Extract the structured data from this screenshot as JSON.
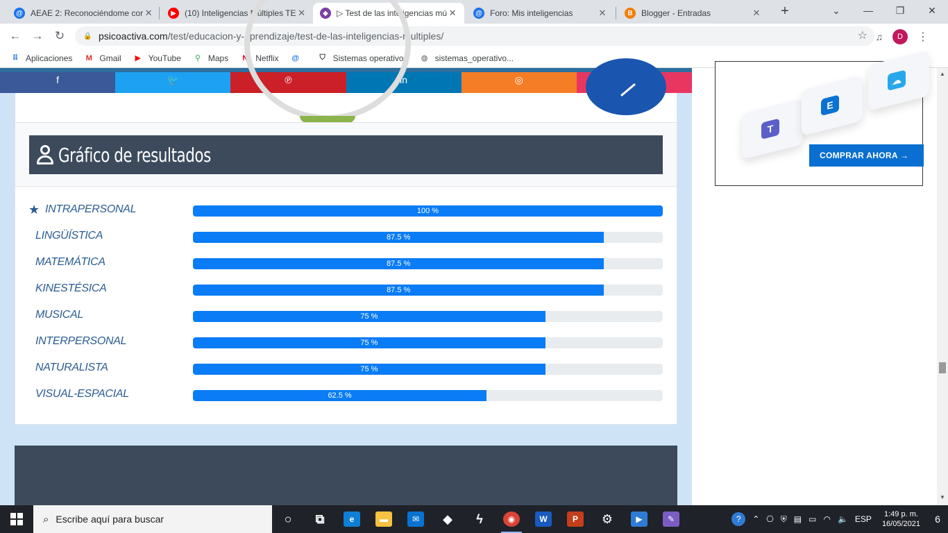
{
  "browser": {
    "tabs": [
      {
        "title": "AEAE 2: Reconociéndome cor",
        "icon": "at-icon",
        "color": "#1a73e8"
      },
      {
        "title": "(10) Inteligencias Múltiples TE",
        "icon": "youtube-icon",
        "color": "#ff0000"
      },
      {
        "title": "▷ Test de las inteligencias mú",
        "icon": "psicoactiva-icon",
        "color": "#7b3fa0"
      },
      {
        "title": "Foro: Mis inteligencias",
        "icon": "at-icon",
        "color": "#1a73e8"
      },
      {
        "title": "Blogger - Entradas",
        "icon": "blogger-icon",
        "color": "#f57d00"
      }
    ],
    "url_host": "psicoactiva.com",
    "url_path": "/test/educacion-y-aprendizaje/test-de-las-inteligencias-multiples/",
    "avatar_letter": "D",
    "bookmarks": [
      {
        "label": "Aplicaciones",
        "icon": "apps-grid-icon"
      },
      {
        "label": "Gmail",
        "icon": "gmail-icon"
      },
      {
        "label": "YouTube",
        "icon": "youtube-icon"
      },
      {
        "label": "Maps",
        "icon": "maps-icon"
      },
      {
        "label": "Netflix",
        "icon": "netflix-icon"
      },
      {
        "label": "",
        "icon": "at-icon"
      },
      {
        "label": "Sistemas operativos",
        "icon": "shield-icon"
      },
      {
        "label": "sistemas_operativo...",
        "icon": "globe-icon"
      }
    ]
  },
  "share_colors": [
    "#3b5998",
    "#1da1f2",
    "#cb2027",
    "#0077b5",
    "#f57d26",
    "#e93660"
  ],
  "results": {
    "title": "Gráfico de resultados",
    "items": [
      {
        "label": "INTRAPERSONAL",
        "value": 100,
        "text": "100 %",
        "starred": true
      },
      {
        "label": "LINGÜÍSTICA",
        "value": 87.5,
        "text": "87.5 %",
        "starred": false
      },
      {
        "label": "MATEMÁTICA",
        "value": 87.5,
        "text": "87.5 %",
        "starred": false
      },
      {
        "label": "KINESTÉSICA",
        "value": 87.5,
        "text": "87.5 %",
        "starred": false
      },
      {
        "label": "MUSICAL",
        "value": 75,
        "text": "75 %",
        "starred": false
      },
      {
        "label": "INTERPERSONAL",
        "value": 75,
        "text": "75 %",
        "starred": false
      },
      {
        "label": "NATURALISTA",
        "value": 75,
        "text": "75 %",
        "starred": false
      },
      {
        "label": "VISUAL-ESPACIAL",
        "value": 62.5,
        "text": "62.5 %",
        "starred": false
      }
    ]
  },
  "ad": {
    "button_label": "COMPRAR AHORA →"
  },
  "taskbar": {
    "search_placeholder": "Escribe aquí para buscar",
    "apps": [
      {
        "name": "cortana-icon",
        "glyph": "○",
        "color": "transparent"
      },
      {
        "name": "task-view-icon",
        "glyph": "⧉",
        "color": "transparent"
      },
      {
        "name": "edge-icon",
        "glyph": "e",
        "color": "#0f7fd4"
      },
      {
        "name": "file-explorer-icon",
        "glyph": "▬",
        "color": "#f6c242"
      },
      {
        "name": "mail-icon",
        "glyph": "✉",
        "color": "#0a72d1"
      },
      {
        "name": "dropbox-icon",
        "glyph": "◆",
        "color": "transparent"
      },
      {
        "name": "app-bolt-icon",
        "glyph": "ϟ",
        "color": "transparent"
      },
      {
        "name": "chrome-icon",
        "glyph": "◉",
        "color": "#db4437"
      },
      {
        "name": "word-icon",
        "glyph": "W",
        "color": "#185abd"
      },
      {
        "name": "powerpoint-icon",
        "glyph": "P",
        "color": "#c43e1c"
      },
      {
        "name": "settings-icon",
        "glyph": "⚙",
        "color": "transparent"
      },
      {
        "name": "video-editor-icon",
        "glyph": "▶",
        "color": "#2f7cd6"
      },
      {
        "name": "paint-icon",
        "glyph": "✎",
        "color": "#7c5cc2"
      }
    ],
    "lang": "ESP",
    "time": "1:49 p. m.",
    "date": "16/05/2021",
    "notification_count": "6"
  }
}
